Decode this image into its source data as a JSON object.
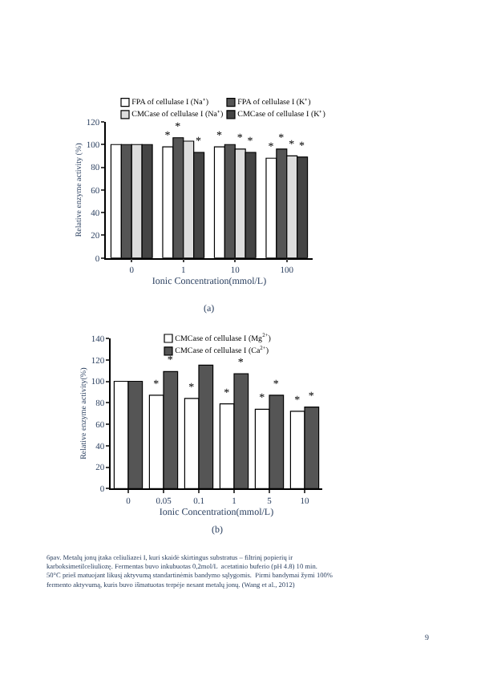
{
  "chart_data": [
    {
      "type": "bar",
      "xlabel": "Ionic Concentration(mmol/L)",
      "ylabel": "Relative enzyme activity (%)",
      "annotations": [
        "(a)"
      ],
      "categories": [
        "0",
        "1",
        "10",
        "100"
      ],
      "series": [
        {
          "name": "FPA of cellulase I (Na⁺)",
          "color": "#ffffff",
          "values": [
            100,
            98,
            98,
            88
          ],
          "value_labels": [
            null,
            "*",
            "*",
            "*"
          ]
        },
        {
          "name": "FPA of cellulase I (K⁺)",
          "color": "#555555",
          "values": [
            100,
            106,
            100,
            96
          ],
          "value_labels": [
            null,
            "*",
            null,
            "*"
          ]
        },
        {
          "name": "CMCase of cellulase I (Na⁺)",
          "color": "#dddddd",
          "values": [
            100,
            103,
            96,
            90
          ],
          "value_labels": [
            null,
            null,
            "*",
            "*"
          ]
        },
        {
          "name": "CMCase of cellulase I (K⁺)",
          "color": "#444444",
          "values": [
            100,
            93,
            93,
            89
          ],
          "value_labels": [
            null,
            "*",
            "*",
            "*"
          ]
        }
      ],
      "ylim": [
        0,
        120
      ],
      "yticks": [
        0,
        20,
        40,
        60,
        80,
        100,
        120
      ],
      "legend": "top"
    },
    {
      "type": "bar",
      "xlabel": "Ionic Concentration(mmol/L)",
      "ylabel": "Relative enzyme activity(%)",
      "annotations": [
        "(b)",
        "6pav. Metalų jonų įtaka celiuliazei I, kuri skaidė skirtingus substratus – filtrinį popierių ir karboksimetilceliuliozę. Fermentas buvo inkubuotas 0,2mol/L  acetatinio buferio (pH 4.8) 10 min. 50°C prieš matuojant likusį aktyvumą standartinėmis bandymo sąlygomis.  Pirmi bandymai žymi 100% fermento aktyvumą, kuris buvo išmatuotas terpėje nesant metalų jonų. (Wang et al., 2012)",
        "9"
      ],
      "categories": [
        "0",
        "0.05",
        "0.1",
        "1",
        "5",
        "10"
      ],
      "series": [
        {
          "name": "CMCase of cellulase I (Mg$^{2+}$)",
          "color": "#ffffff",
          "values": [
            100,
            87,
            84,
            79,
            74,
            72
          ],
          "value_labels": [
            null,
            "*",
            "*",
            "*",
            "*",
            "*"
          ]
        },
        {
          "name": "CMCase of cellulase I (Ca$^{2+}$)",
          "color": "#555555",
          "values": [
            100,
            109,
            115,
            107,
            87,
            76
          ],
          "value_labels": [
            null,
            "*",
            null,
            "*",
            "*",
            "*"
          ]
        }
      ],
      "ylim": [
        0,
        140
      ],
      "yticks": [
        0,
        20,
        40,
        60,
        80,
        100,
        120,
        140
      ],
      "legend": "top"
    }
  ]
}
